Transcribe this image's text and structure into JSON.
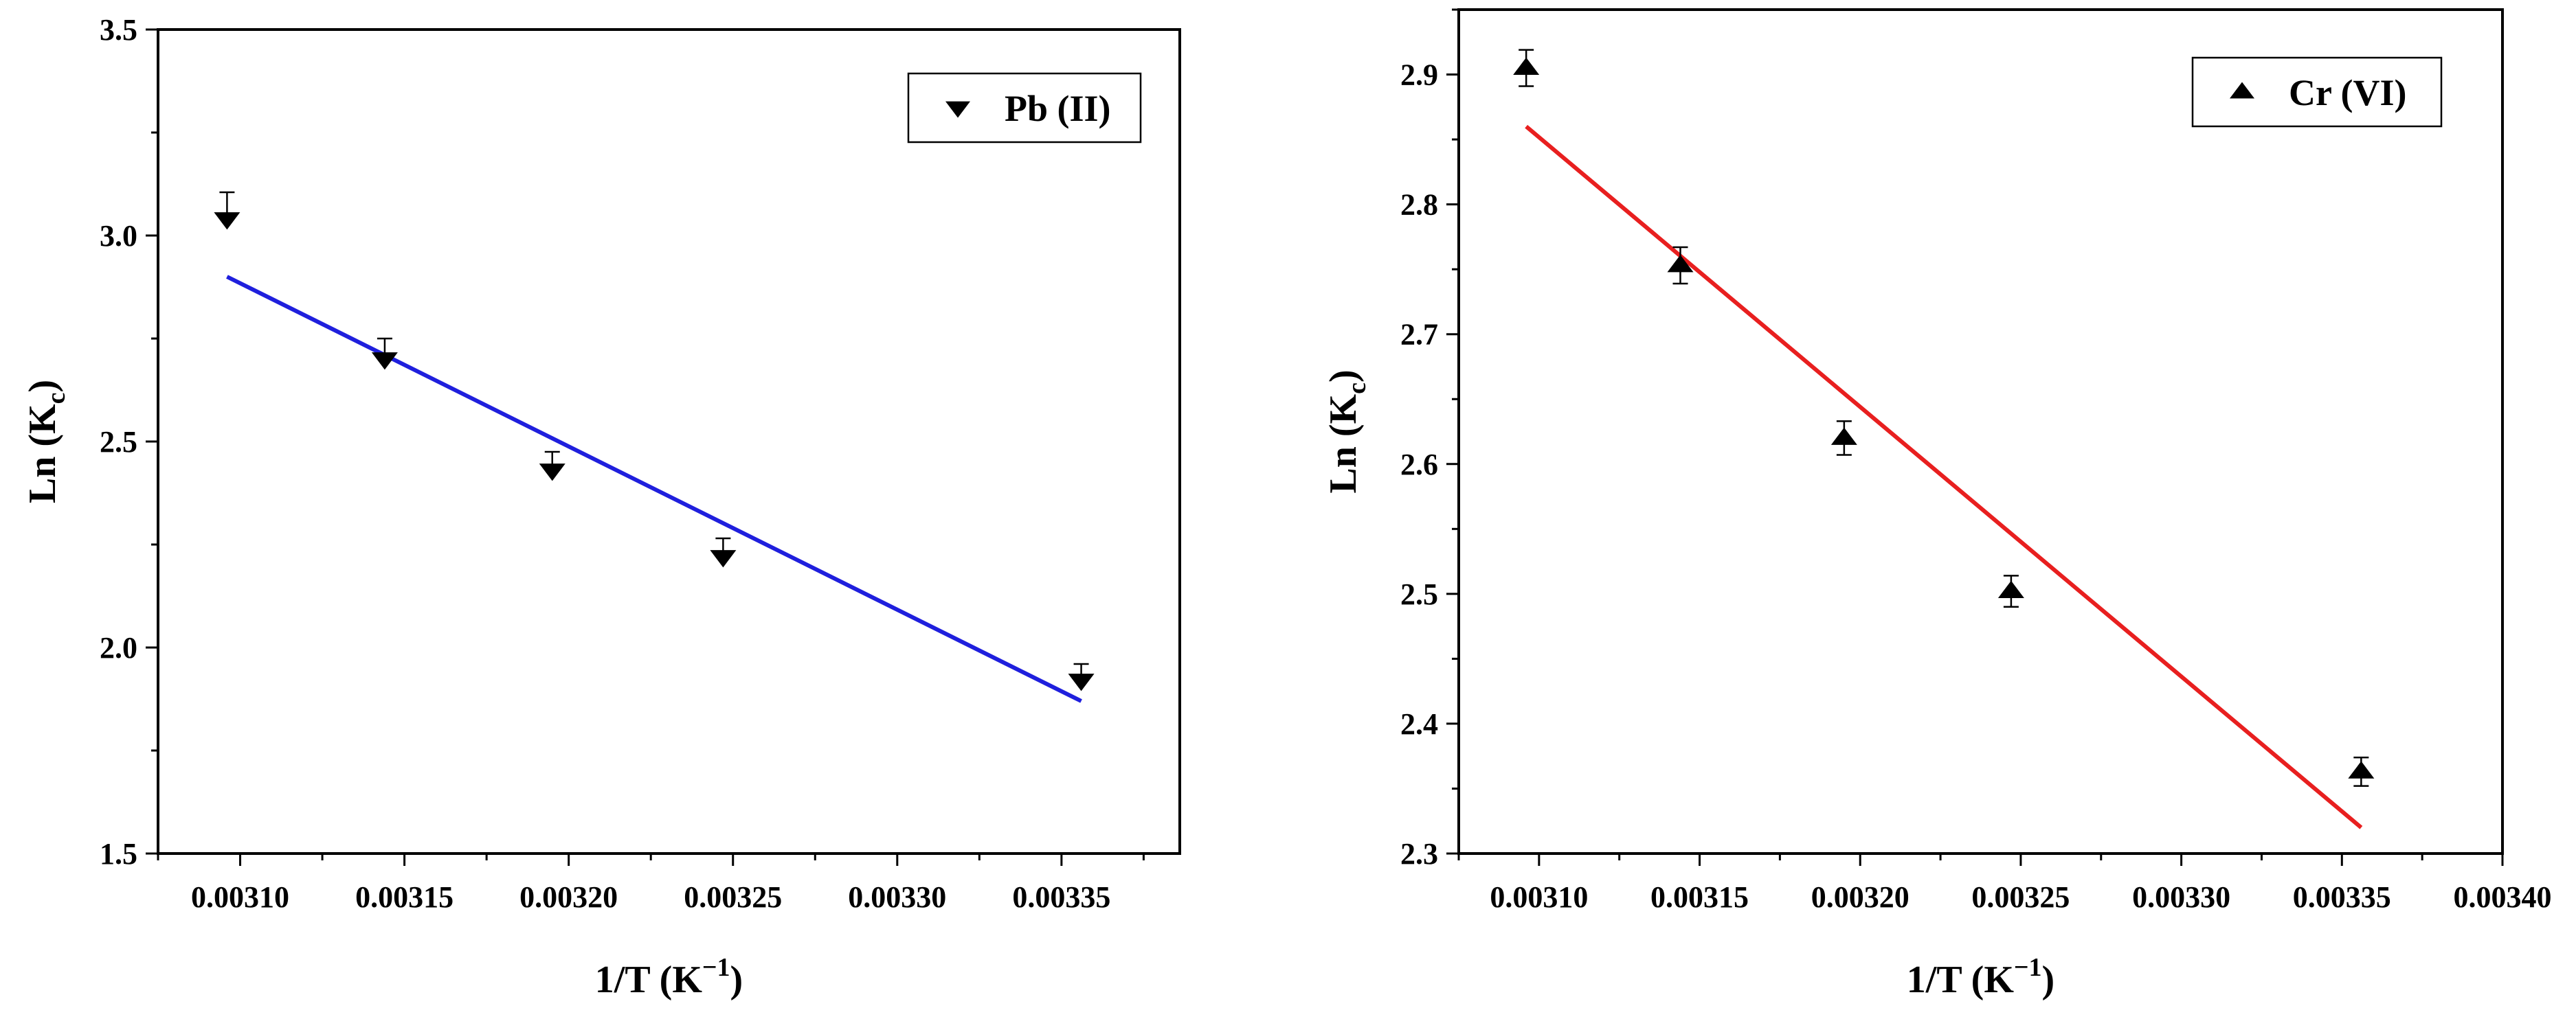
{
  "chart_data": [
    {
      "type": "scatter",
      "title": "",
      "xlabel_main": "1/T (K",
      "xlabel_sup": "−1",
      "xlabel_end": ")",
      "ylabel_main": "Ln (K",
      "ylabel_sub": "c",
      "ylabel_end": ")",
      "xlim": [
        0.003075,
        0.003386
      ],
      "ylim": [
        1.5,
        3.5
      ],
      "xticks": [
        0.0031,
        0.00315,
        0.0032,
        0.00325,
        0.0033,
        0.00335
      ],
      "xtick_labels": [
        "0.00310",
        "0.00315",
        "0.00320",
        "0.00325",
        "0.00330",
        "0.00335"
      ],
      "yticks": [
        1.5,
        2.0,
        2.5,
        3.0,
        3.5
      ],
      "ytick_labels": [
        "1.5",
        "2.0",
        "2.5",
        "3.0",
        "3.5"
      ],
      "legend": {
        "label": "Pb (II)",
        "position": "top-right",
        "marker": "triangle-down"
      },
      "series": [
        {
          "name": "Pb (II)",
          "marker": "triangle-down",
          "x": [
            0.003096,
            0.003144,
            0.003195,
            0.003247,
            0.003356
          ],
          "y": [
            3.04,
            2.7,
            2.43,
            2.22,
            1.92
          ],
          "err": [
            0.065,
            0.05,
            0.045,
            0.045,
            0.04
          ]
        }
      ],
      "fit": {
        "x": [
          0.003096,
          0.003356
        ],
        "y": [
          2.9,
          1.87
        ],
        "color": "#1f1fdd"
      }
    },
    {
      "type": "scatter",
      "title": "",
      "xlabel_main": "1/T (K",
      "xlabel_sup": "−1",
      "xlabel_end": ")",
      "ylabel_main": "Ln (K",
      "ylabel_sub": "c",
      "ylabel_end": ")",
      "xlim": [
        0.003075,
        0.0034
      ],
      "ylim": [
        2.3,
        2.95
      ],
      "xticks": [
        0.0031,
        0.00315,
        0.0032,
        0.00325,
        0.0033,
        0.00335,
        0.0034
      ],
      "xtick_labels": [
        "0.00310",
        "0.00315",
        "0.00320",
        "0.00325",
        "0.00330",
        "0.00335",
        "0.00340"
      ],
      "yticks": [
        2.3,
        2.4,
        2.5,
        2.6,
        2.7,
        2.8,
        2.9
      ],
      "ytick_labels": [
        "2.3",
        "2.4",
        "2.5",
        "2.6",
        "2.7",
        "2.8",
        "2.9"
      ],
      "legend": {
        "label": "Cr (VI)",
        "position": "top-right",
        "marker": "triangle-up"
      },
      "series": [
        {
          "name": "Cr (VI)",
          "marker": "triangle-up",
          "x": [
            0.003096,
            0.003144,
            0.003195,
            0.003247,
            0.003356
          ],
          "y": [
            2.905,
            2.753,
            2.62,
            2.502,
            2.363
          ],
          "err": [
            0.014,
            0.014,
            0.013,
            0.012,
            0.011
          ]
        }
      ],
      "fit": {
        "x": [
          0.003096,
          0.003356
        ],
        "y": [
          2.86,
          2.32
        ],
        "color": "#e81f1f"
      }
    }
  ]
}
